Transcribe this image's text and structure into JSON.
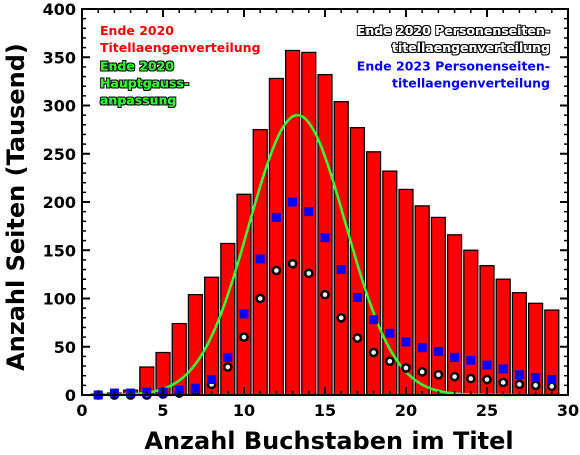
{
  "chart_data": {
    "type": "bar",
    "xlabel": "Anzahl Buchstaben im Titel",
    "ylabel": "Anzahl Seiten (Tausend)",
    "xlim": [
      0,
      30
    ],
    "ylim": [
      0,
      400
    ],
    "xticks": [
      "0",
      "5",
      "10",
      "15",
      "20",
      "25",
      "30"
    ],
    "yticks": [
      "0",
      "50",
      "100",
      "150",
      "200",
      "250",
      "300",
      "350",
      "400"
    ],
    "grid": false,
    "legend_position": "top",
    "bars": {
      "name": "Ende 2020 Titellaengenverteilung",
      "color": "#ff0000",
      "x": [
        1,
        2,
        3,
        4,
        5,
        6,
        7,
        8,
        9,
        10,
        11,
        12,
        13,
        14,
        15,
        16,
        17,
        18,
        19,
        20,
        21,
        22,
        23,
        24,
        25,
        26,
        27,
        28,
        29
      ],
      "values": [
        1,
        2,
        5,
        29,
        44,
        74,
        104,
        122,
        157,
        208,
        275,
        328,
        357,
        355,
        332,
        304,
        277,
        252,
        232,
        213,
        196,
        184,
        166,
        150,
        134,
        120,
        106,
        95,
        88
      ]
    },
    "gauss": {
      "name": "Ende 2020 Hauptgauss-anpassung",
      "color": "#33ff33",
      "amplitude": 290,
      "center": 13.3,
      "sigma": 3.0
    },
    "series": [
      {
        "name": "Ende 2020 Personenseiten-titellaengenverteilung",
        "color": "#ffffff",
        "marker": "circle",
        "x": [
          1,
          2,
          3,
          4,
          5,
          6,
          7,
          8,
          9,
          10,
          11,
          12,
          13,
          14,
          15,
          16,
          17,
          18,
          19,
          20,
          21,
          22,
          23,
          24,
          25,
          26,
          27,
          28,
          29
        ],
        "values": [
          0,
          0,
          0,
          0,
          1,
          2,
          4,
          11,
          29,
          60,
          100,
          129,
          136,
          126,
          104,
          80,
          59,
          44,
          35,
          28,
          24,
          21,
          19,
          17,
          16,
          13,
          11,
          10,
          9
        ]
      },
      {
        "name": "Ende 2023 Personenseiten-titellaengenverteilung",
        "color": "#0000ff",
        "marker": "square",
        "x": [
          1,
          2,
          3,
          4,
          5,
          6,
          7,
          8,
          9,
          10,
          11,
          12,
          13,
          14,
          15,
          16,
          17,
          18,
          19,
          20,
          21,
          22,
          23,
          24,
          25,
          26,
          27,
          28,
          29
        ],
        "values": [
          0,
          2,
          2,
          3,
          3,
          5,
          7,
          16,
          39,
          84,
          141,
          184,
          200,
          190,
          163,
          130,
          101,
          78,
          64,
          55,
          49,
          45,
          39,
          36,
          31,
          27,
          21,
          18,
          16
        ]
      }
    ],
    "legend_left": [
      {
        "lines": [
          "Ende 2020",
          "Titellaengenverteilung"
        ],
        "color": "#ff0000"
      },
      {
        "lines": [
          "Ende 2020",
          "Hauptgauss-",
          "anpassung"
        ],
        "color": "#33ff33"
      }
    ],
    "legend_right": [
      {
        "lines": [
          "Ende 2020 Personenseiten-",
          "titellaengenverteilung"
        ],
        "color": "#ffffff"
      },
      {
        "lines": [
          "Ende 2023 Personenseiten-",
          "titellaengenverteilung"
        ],
        "color": "#0000ff"
      }
    ]
  }
}
